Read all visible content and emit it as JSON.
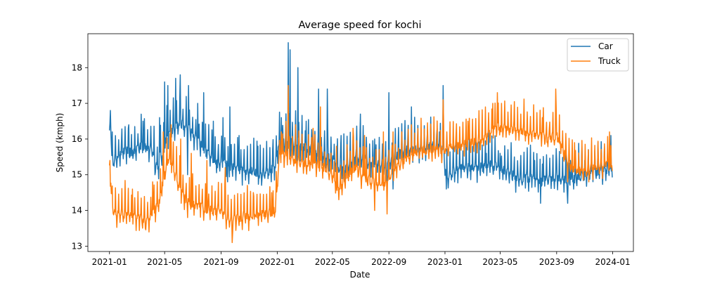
{
  "chart_data": {
    "type": "line",
    "title": "Average speed for kochi",
    "xlabel": "Date",
    "ylabel": "Speed (kmph)",
    "x_domain": [
      "2020-11-15",
      "2024-02-15"
    ],
    "ylim": [
      12.85,
      18.95
    ],
    "x_ticks": [
      "2021-01",
      "2021-05",
      "2021-09",
      "2022-01",
      "2022-05",
      "2022-09",
      "2023-01",
      "2023-05",
      "2023-09",
      "2024-01"
    ],
    "y_ticks": [
      13,
      14,
      15,
      16,
      17,
      18
    ],
    "grid": false,
    "legend_position": "top-right",
    "series": [
      {
        "name": "Car",
        "color": "#1f77b4",
        "points": [
          [
            "2021-01-01",
            16.3
          ],
          [
            "2021-01-03",
            16.8
          ],
          [
            "2021-01-06",
            15.5
          ],
          [
            "2021-01-10",
            15.3
          ],
          [
            "2021-01-20",
            15.6
          ],
          [
            "2021-02-01",
            15.7
          ],
          [
            "2021-02-20",
            15.6
          ],
          [
            "2021-03-10",
            15.8
          ],
          [
            "2021-04-01",
            15.7
          ],
          [
            "2021-04-15",
            15.2
          ],
          [
            "2021-04-25",
            15.5
          ],
          [
            "2021-05-05",
            16.0
          ],
          [
            "2021-05-20",
            16.3
          ],
          [
            "2021-06-10",
            16.4
          ],
          [
            "2021-06-25",
            16.2
          ],
          [
            "2021-07-10",
            16.0
          ],
          [
            "2021-07-25",
            15.7
          ],
          [
            "2021-08-10",
            15.5
          ],
          [
            "2021-08-25",
            15.3
          ],
          [
            "2021-09-10",
            15.3
          ],
          [
            "2021-09-25",
            15.2
          ],
          [
            "2021-10-15",
            15.1
          ],
          [
            "2021-11-05",
            15.1
          ],
          [
            "2021-11-25",
            15.0
          ],
          [
            "2021-12-15",
            15.1
          ],
          [
            "2021-12-28",
            15.2
          ],
          [
            "2022-01-05",
            15.9
          ],
          [
            "2022-01-20",
            15.9
          ],
          [
            "2022-02-05",
            15.9
          ],
          [
            "2022-02-20",
            15.8
          ],
          [
            "2022-03-10",
            15.7
          ],
          [
            "2022-04-01",
            15.6
          ],
          [
            "2022-04-20",
            15.5
          ],
          [
            "2022-05-05",
            15.4
          ],
          [
            "2022-05-20",
            15.1
          ],
          [
            "2022-06-10",
            15.3
          ],
          [
            "2022-06-25",
            15.5
          ],
          [
            "2022-07-15",
            15.4
          ],
          [
            "2022-08-05",
            15.3
          ],
          [
            "2022-08-25",
            15.2
          ],
          [
            "2022-09-10",
            15.4
          ],
          [
            "2022-09-25",
            15.6
          ],
          [
            "2022-10-15",
            15.7
          ],
          [
            "2022-11-05",
            15.7
          ],
          [
            "2022-11-25",
            15.8
          ],
          [
            "2022-12-15",
            15.8
          ],
          [
            "2022-12-28",
            15.7
          ],
          [
            "2023-01-05",
            14.9
          ],
          [
            "2023-01-20",
            15.1
          ],
          [
            "2023-02-10",
            15.2
          ],
          [
            "2023-03-01",
            15.2
          ],
          [
            "2023-03-20",
            15.2
          ],
          [
            "2023-04-10",
            15.3
          ],
          [
            "2023-04-25",
            15.2
          ],
          [
            "2023-05-10",
            15.1
          ],
          [
            "2023-05-25",
            15.0
          ],
          [
            "2023-06-15",
            14.9
          ],
          [
            "2023-07-05",
            14.9
          ],
          [
            "2023-07-25",
            14.8
          ],
          [
            "2023-08-15",
            14.9
          ],
          [
            "2023-09-05",
            14.9
          ],
          [
            "2023-09-25",
            14.8
          ],
          [
            "2023-10-15",
            14.9
          ],
          [
            "2023-11-05",
            15.0
          ],
          [
            "2023-11-25",
            15.1
          ],
          [
            "2023-12-15",
            15.1
          ],
          [
            "2023-12-31",
            15.2
          ]
        ],
        "peaks": [
          [
            "2021-01-03",
            16.8
          ],
          [
            "2021-02-12",
            16.4
          ],
          [
            "2021-03-15",
            16.5
          ],
          [
            "2021-04-20",
            16.6
          ],
          [
            "2021-05-01",
            17.6
          ],
          [
            "2021-05-08",
            17.5
          ],
          [
            "2021-05-25",
            17.7
          ],
          [
            "2021-06-04",
            17.8
          ],
          [
            "2021-06-22",
            17.5
          ],
          [
            "2021-07-12",
            17.0
          ],
          [
            "2021-07-25",
            17.3
          ],
          [
            "2021-08-15",
            16.5
          ],
          [
            "2021-09-05",
            16.6
          ],
          [
            "2021-09-20",
            16.9
          ],
          [
            "2021-10-10",
            16.1
          ],
          [
            "2021-11-20",
            15.8
          ],
          [
            "2021-12-22",
            15.7
          ],
          [
            "2022-01-10",
            16.6
          ],
          [
            "2022-01-25",
            18.7
          ],
          [
            "2022-01-29",
            18.5
          ],
          [
            "2022-02-15",
            18.0
          ],
          [
            "2022-03-05",
            16.5
          ],
          [
            "2022-04-01",
            17.4
          ],
          [
            "2022-04-20",
            17.4
          ],
          [
            "2022-05-20",
            16.1
          ],
          [
            "2022-06-15",
            16.1
          ],
          [
            "2022-07-01",
            16.7
          ],
          [
            "2022-08-01",
            16.0
          ],
          [
            "2022-09-01",
            17.3
          ],
          [
            "2022-10-20",
            16.9
          ],
          [
            "2022-12-20",
            16.2
          ],
          [
            "2022-12-28",
            17.5
          ],
          [
            "2023-04-01",
            15.6
          ],
          [
            "2023-05-01",
            15.6
          ],
          [
            "2023-06-01",
            15.5
          ],
          [
            "2023-07-15",
            15.4
          ],
          [
            "2023-08-01",
            15.3
          ],
          [
            "2023-09-01",
            15.4
          ],
          [
            "2023-10-01",
            15.4
          ],
          [
            "2023-11-01",
            15.4
          ]
        ],
        "troughs": [
          [
            "2021-01-10",
            15.3
          ],
          [
            "2021-04-10",
            15.0
          ],
          [
            "2021-06-20",
            15.0
          ],
          [
            "2021-09-15",
            14.8
          ],
          [
            "2021-12-05",
            14.9
          ],
          [
            "2022-05-25",
            14.9
          ],
          [
            "2022-09-10",
            14.6
          ],
          [
            "2023-01-04",
            14.6
          ],
          [
            "2023-07-28",
            14.2
          ],
          [
            "2023-09-25",
            14.2
          ]
        ],
        "spike_amp": 0.9,
        "dip_amp": 0.35,
        "noise": 0.13
      },
      {
        "name": "Truck",
        "color": "#ff7f0e",
        "points": [
          [
            "2021-01-01",
            15.3
          ],
          [
            "2021-01-04",
            14.7
          ],
          [
            "2021-01-08",
            14.0
          ],
          [
            "2021-01-20",
            13.9
          ],
          [
            "2021-02-10",
            13.9
          ],
          [
            "2021-03-01",
            13.8
          ],
          [
            "2021-03-20",
            13.7
          ],
          [
            "2021-04-01",
            13.8
          ],
          [
            "2021-04-20",
            14.3
          ],
          [
            "2021-05-01",
            15.0
          ],
          [
            "2021-05-10",
            15.5
          ],
          [
            "2021-05-25",
            15.0
          ],
          [
            "2021-06-10",
            14.4
          ],
          [
            "2021-06-25",
            14.2
          ],
          [
            "2021-07-15",
            14.1
          ],
          [
            "2021-08-10",
            14.0
          ],
          [
            "2021-09-05",
            14.0
          ],
          [
            "2021-09-20",
            13.7
          ],
          [
            "2021-10-10",
            13.8
          ],
          [
            "2021-10-30",
            13.8
          ],
          [
            "2021-11-20",
            13.9
          ],
          [
            "2021-12-10",
            13.9
          ],
          [
            "2021-12-28",
            14.0
          ],
          [
            "2022-01-05",
            15.5
          ],
          [
            "2022-01-20",
            15.6
          ],
          [
            "2022-02-10",
            15.4
          ],
          [
            "2022-03-01",
            15.3
          ],
          [
            "2022-03-25",
            15.3
          ],
          [
            "2022-04-15",
            15.2
          ],
          [
            "2022-05-01",
            15.0
          ],
          [
            "2022-05-15",
            14.5
          ],
          [
            "2022-06-01",
            15.0
          ],
          [
            "2022-06-20",
            15.2
          ],
          [
            "2022-07-10",
            14.9
          ],
          [
            "2022-08-01",
            14.8
          ],
          [
            "2022-08-25",
            14.8
          ],
          [
            "2022-09-10",
            15.1
          ],
          [
            "2022-10-01",
            15.4
          ],
          [
            "2022-10-25",
            15.6
          ],
          [
            "2022-11-15",
            15.7
          ],
          [
            "2022-12-05",
            15.7
          ],
          [
            "2022-12-28",
            15.7
          ],
          [
            "2023-01-10",
            15.8
          ],
          [
            "2023-02-01",
            15.8
          ],
          [
            "2023-03-01",
            15.9
          ],
          [
            "2023-03-25",
            16.0
          ],
          [
            "2023-04-20",
            16.3
          ],
          [
            "2023-05-10",
            16.3
          ],
          [
            "2023-06-01",
            16.3
          ],
          [
            "2023-06-25",
            16.2
          ],
          [
            "2023-07-20",
            16.1
          ],
          [
            "2023-08-15",
            16.0
          ],
          [
            "2023-09-01",
            16.1
          ],
          [
            "2023-09-20",
            15.5
          ],
          [
            "2023-10-10",
            15.1
          ],
          [
            "2023-11-01",
            15.1
          ],
          [
            "2023-11-25",
            15.2
          ],
          [
            "2023-12-15",
            15.3
          ],
          [
            "2023-12-31",
            15.3
          ]
        ],
        "peaks": [
          [
            "2021-01-02",
            15.4
          ],
          [
            "2021-02-20",
            14.6
          ],
          [
            "2021-04-05",
            14.8
          ],
          [
            "2021-04-28",
            16.2
          ],
          [
            "2021-05-15",
            16.4
          ],
          [
            "2021-06-05",
            16.0
          ],
          [
            "2021-06-28",
            15.6
          ],
          [
            "2021-08-01",
            15.4
          ],
          [
            "2021-09-10",
            15.2
          ],
          [
            "2021-11-10",
            14.5
          ],
          [
            "2021-12-20",
            14.5
          ],
          [
            "2022-01-10",
            16.2
          ],
          [
            "2022-01-25",
            17.5
          ],
          [
            "2022-02-10",
            16.4
          ],
          [
            "2022-03-20",
            16.3
          ],
          [
            "2022-04-05",
            16.9
          ],
          [
            "2022-05-10",
            15.8
          ],
          [
            "2022-06-15",
            16.3
          ],
          [
            "2022-07-10",
            16.1
          ],
          [
            "2022-08-20",
            16.2
          ],
          [
            "2022-09-10",
            16.2
          ],
          [
            "2022-10-20",
            16.4
          ],
          [
            "2022-12-28",
            17.1
          ],
          [
            "2023-02-20",
            16.5
          ],
          [
            "2023-04-15",
            17.0
          ],
          [
            "2023-04-25",
            17.3
          ],
          [
            "2023-06-15",
            16.7
          ],
          [
            "2023-08-01",
            16.6
          ],
          [
            "2023-08-30",
            17.4
          ],
          [
            "2023-10-10",
            15.9
          ],
          [
            "2023-12-25",
            16.2
          ]
        ],
        "troughs": [
          [
            "2021-03-20",
            13.5
          ],
          [
            "2021-06-20",
            13.8
          ],
          [
            "2021-09-25",
            13.1
          ],
          [
            "2022-05-15",
            14.3
          ],
          [
            "2022-08-01",
            14.0
          ],
          [
            "2022-08-28",
            13.9
          ],
          [
            "2023-09-25",
            14.8
          ],
          [
            "2023-11-10",
            14.8
          ]
        ],
        "spike_amp": 0.85,
        "dip_amp": 0.3,
        "noise": 0.12
      }
    ]
  }
}
